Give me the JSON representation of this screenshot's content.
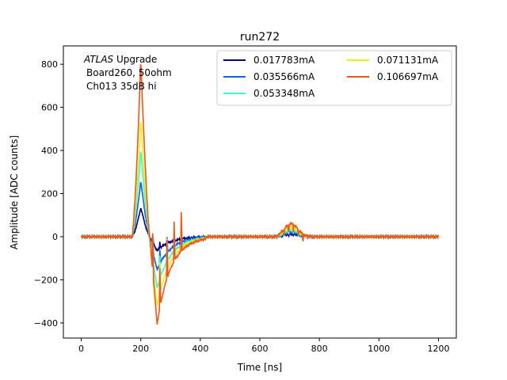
{
  "chart_data": {
    "type": "line",
    "title": "run272",
    "xlabel": "Time [ns]",
    "ylabel": "Amplitude [ADC counts]",
    "xlim": [
      -60,
      1260
    ],
    "ylim": [
      -470,
      885
    ],
    "grid": false,
    "legend_placement": "top-right",
    "x_ticks": [
      0,
      200,
      400,
      600,
      800,
      1000,
      1200
    ],
    "y_ticks": [
      -400,
      -200,
      0,
      200,
      400,
      600,
      800
    ],
    "annotation": {
      "line1_italic": "ATLAS",
      "line1_rest": " Upgrade",
      "line2": "Board260, 50ohm",
      "line3": "Ch013 35dB hi"
    },
    "series": [
      {
        "name": "0.017783mA",
        "color": "#00008b",
        "peak": 135,
        "undershoot": -65,
        "tail": 12
      },
      {
        "name": "0.035566mA",
        "color": "#0a5ff5",
        "peak": 260,
        "undershoot": -155,
        "tail": 22
      },
      {
        "name": "0.053348mA",
        "color": "#3dfacc",
        "peak": 400,
        "undershoot": -240,
        "tail": 33
      },
      {
        "name": "0.071131mA",
        "color": "#e8f01a",
        "peak": 545,
        "undershoot": -320,
        "tail": 45
      },
      {
        "name": "0.106697mA",
        "color": "#f55514",
        "peak": 820,
        "undershoot": -405,
        "tail": 60
      }
    ],
    "x": [
      0,
      100,
      170,
      180,
      190,
      200,
      210,
      220,
      230,
      240,
      250,
      260,
      270,
      280,
      300,
      320,
      340,
      360,
      380,
      400,
      440,
      500,
      600,
      660,
      680,
      700,
      720,
      740,
      760,
      780,
      800,
      850,
      900,
      1000,
      1100,
      1200
    ]
  }
}
